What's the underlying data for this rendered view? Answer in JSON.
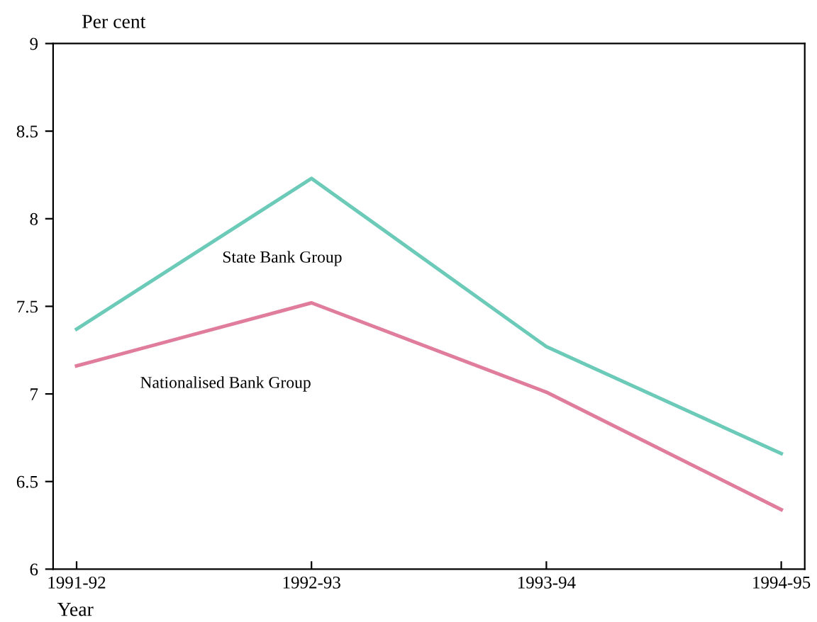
{
  "chart_data": {
    "type": "line",
    "ylabel": "Per cent",
    "xlabel": "Year",
    "categories": [
      "1991-92",
      "1992-93",
      "1993-94",
      "1994-95"
    ],
    "series": [
      {
        "name": "State Bank Group",
        "color": "#6ccab8",
        "values": [
          7.37,
          8.23,
          7.27,
          6.66
        ]
      },
      {
        "name": "Nationalised Bank Group",
        "color": "#e07c9c",
        "values": [
          7.16,
          7.52,
          7.01,
          6.34
        ]
      }
    ],
    "ylim": [
      6,
      9
    ],
    "yticks": [
      6,
      6.5,
      7,
      7.5,
      8,
      8.5,
      9
    ],
    "grid": false,
    "legend": false,
    "marker": "none",
    "line_style": "solid"
  }
}
